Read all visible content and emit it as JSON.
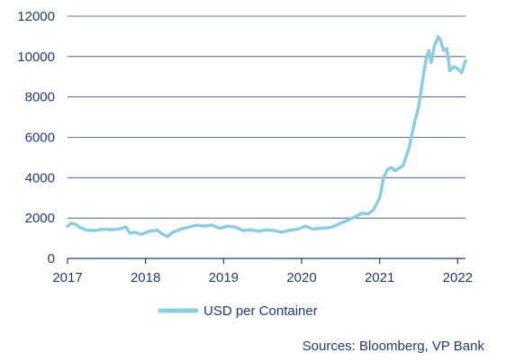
{
  "chart_data": {
    "type": "line",
    "title": "",
    "xlabel": "",
    "ylabel": "",
    "xlim": [
      2017,
      2022.1
    ],
    "ylim": [
      0,
      12000
    ],
    "x_ticks": [
      "2017",
      "2018",
      "2019",
      "2020",
      "2021",
      "2022"
    ],
    "y_ticks": [
      "0",
      "2000",
      "4000",
      "6000",
      "8000",
      "10000",
      "12000"
    ],
    "grid": "horizontal",
    "legend_position": "bottom",
    "series": [
      {
        "name": "USD per Container",
        "color": "#8ccde0",
        "points": [
          [
            2017.0,
            1600
          ],
          [
            2017.05,
            1750
          ],
          [
            2017.1,
            1700
          ],
          [
            2017.15,
            1550
          ],
          [
            2017.25,
            1400
          ],
          [
            2017.35,
            1380
          ],
          [
            2017.45,
            1450
          ],
          [
            2017.55,
            1420
          ],
          [
            2017.65,
            1450
          ],
          [
            2017.75,
            1550
          ],
          [
            2017.8,
            1250
          ],
          [
            2017.85,
            1300
          ],
          [
            2017.95,
            1200
          ],
          [
            2018.05,
            1350
          ],
          [
            2018.15,
            1400
          ],
          [
            2018.2,
            1250
          ],
          [
            2018.28,
            1080
          ],
          [
            2018.35,
            1300
          ],
          [
            2018.45,
            1450
          ],
          [
            2018.55,
            1550
          ],
          [
            2018.65,
            1650
          ],
          [
            2018.75,
            1600
          ],
          [
            2018.85,
            1650
          ],
          [
            2018.95,
            1500
          ],
          [
            2019.05,
            1600
          ],
          [
            2019.15,
            1550
          ],
          [
            2019.25,
            1380
          ],
          [
            2019.35,
            1420
          ],
          [
            2019.45,
            1350
          ],
          [
            2019.55,
            1420
          ],
          [
            2019.65,
            1380
          ],
          [
            2019.75,
            1300
          ],
          [
            2019.85,
            1400
          ],
          [
            2019.95,
            1450
          ],
          [
            2020.05,
            1600
          ],
          [
            2020.15,
            1450
          ],
          [
            2020.25,
            1500
          ],
          [
            2020.35,
            1520
          ],
          [
            2020.42,
            1600
          ],
          [
            2020.5,
            1750
          ],
          [
            2020.6,
            1900
          ],
          [
            2020.7,
            2100
          ],
          [
            2020.78,
            2250
          ],
          [
            2020.85,
            2200
          ],
          [
            2020.92,
            2400
          ],
          [
            2021.0,
            3000
          ],
          [
            2021.05,
            4000
          ],
          [
            2021.1,
            4400
          ],
          [
            2021.15,
            4500
          ],
          [
            2021.2,
            4350
          ],
          [
            2021.3,
            4600
          ],
          [
            2021.38,
            5500
          ],
          [
            2021.45,
            6800
          ],
          [
            2021.5,
            7500
          ],
          [
            2021.55,
            8800
          ],
          [
            2021.6,
            10000
          ],
          [
            2021.63,
            10300
          ],
          [
            2021.66,
            9700
          ],
          [
            2021.7,
            10500
          ],
          [
            2021.75,
            11000
          ],
          [
            2021.78,
            10800
          ],
          [
            2021.82,
            10300
          ],
          [
            2021.86,
            10400
          ],
          [
            2021.9,
            9300
          ],
          [
            2021.95,
            9500
          ],
          [
            2022.0,
            9400
          ],
          [
            2022.05,
            9200
          ],
          [
            2022.1,
            9800
          ]
        ]
      }
    ]
  },
  "source_text": "Sources: Bloomberg, VP Bank"
}
